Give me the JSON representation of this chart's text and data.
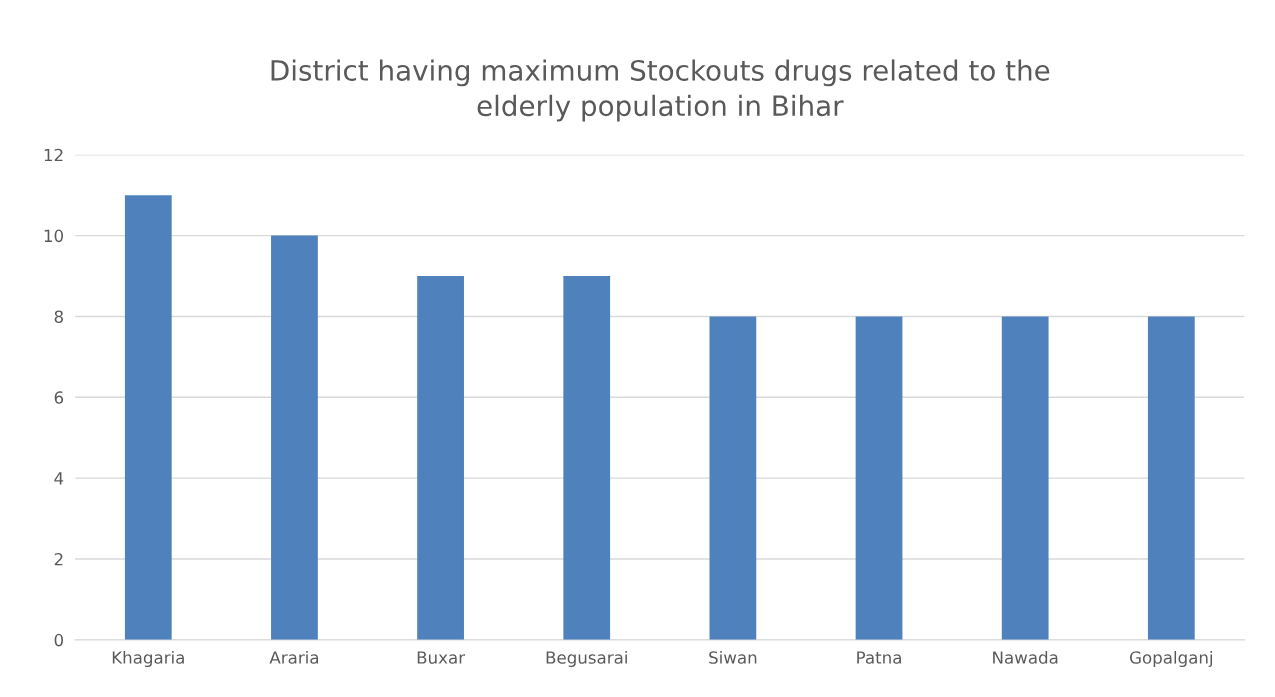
{
  "chart_data": {
    "type": "bar",
    "title": "District having maximum Stockouts drugs related to the\nelderly population in Bihar",
    "categories": [
      "Khagaria",
      "Araria",
      "Buxar",
      "Begusarai",
      "Siwan",
      "Patna",
      "Nawada",
      "Gopalganj"
    ],
    "values": [
      11,
      10,
      9,
      9,
      8,
      8,
      8,
      8
    ],
    "color": "#4f81bd",
    "ylim": [
      0,
      12
    ],
    "yticks": [
      0,
      2,
      4,
      6,
      8,
      10,
      12
    ],
    "grid": "y"
  }
}
